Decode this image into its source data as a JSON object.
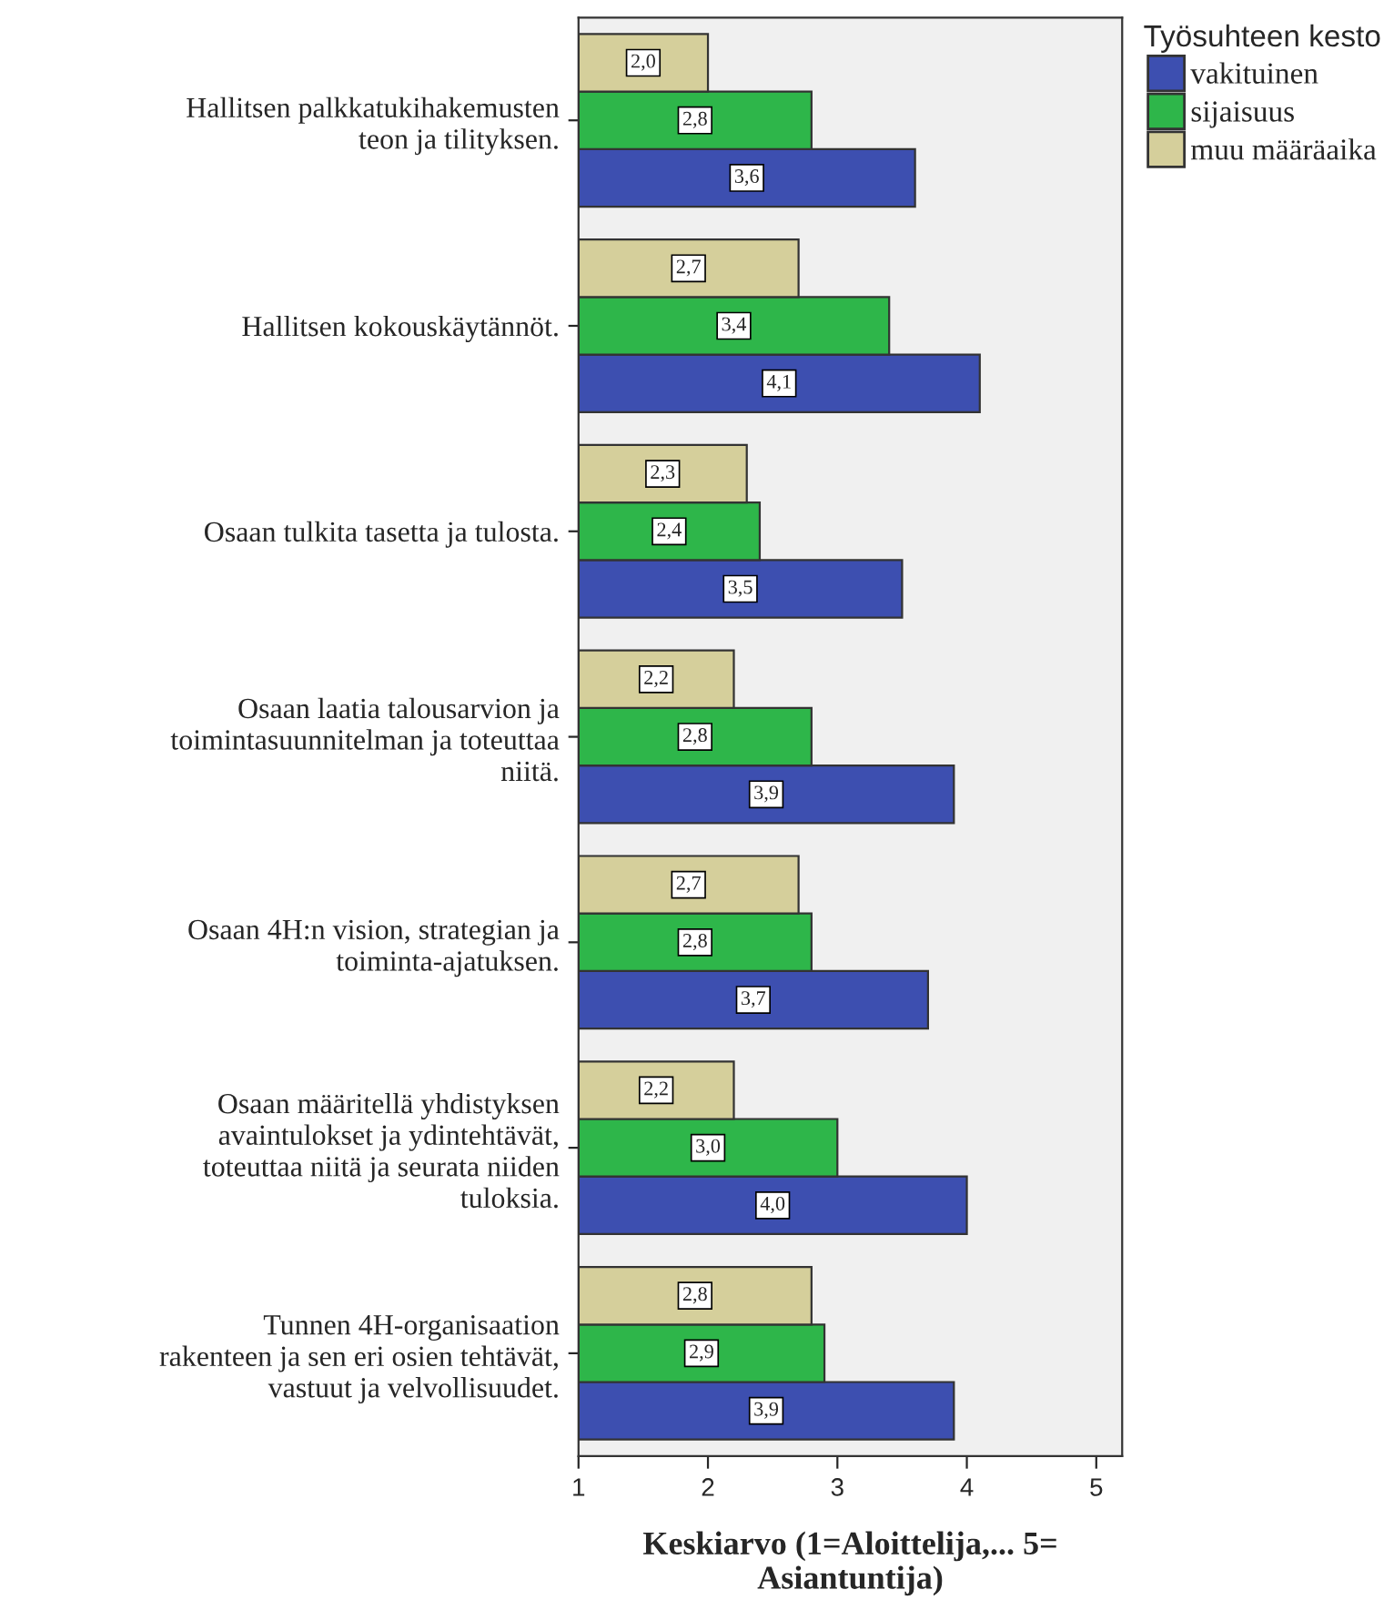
{
  "chart_data": {
    "type": "bar",
    "orientation": "horizontal",
    "categories": [
      "Hallitsen palkkatukihakemusten\nteon ja tilityksen.",
      "Hallitsen kokouskäytännöt.",
      "Osaan tulkita tasetta ja tulosta.",
      "Osaan laatia talousarvion ja\ntoimintasuunnitelman ja toteuttaa\nniitä.",
      "Osaan 4H:n vision, strategian ja\ntoiminta-ajatuksen.",
      "Osaan määritellä yhdistyksen\navaintulokset ja ydintehtävät,\ntoteuttaa niitä ja seurata niiden\ntuloksia.",
      "Tunnen 4H-organisaation\nrakenteen ja sen eri osien tehtävät,\nvastuut ja velvollisuudet."
    ],
    "series": [
      {
        "name": "vakituinen",
        "color": "#3d4fb0",
        "values": [
          3.6,
          4.1,
          3.5,
          3.9,
          3.7,
          4.0,
          3.9
        ],
        "value_labels": [
          "3,6",
          "4,1",
          "3,5",
          "3,9",
          "3,7",
          "4,0",
          "3,9"
        ]
      },
      {
        "name": "sijaisuus",
        "color": "#2eb64a",
        "values": [
          2.8,
          3.4,
          2.4,
          2.8,
          2.8,
          3.0,
          2.9
        ],
        "value_labels": [
          "2,8",
          "3,4",
          "2,4",
          "2,8",
          "2,8",
          "3,0",
          "2,9"
        ]
      },
      {
        "name": "muu määräaika",
        "color": "#d5cf9b",
        "values": [
          2.0,
          2.7,
          2.3,
          2.2,
          2.7,
          2.2,
          2.8
        ],
        "value_labels": [
          "2,0",
          "2,7",
          "2,3",
          "2,2",
          "2,7",
          "2,2",
          "2,8"
        ]
      }
    ],
    "xlabel": "Keskiarvo (1=Aloittelija,... 5=\nAsiantuntija)",
    "legend_title": "Työsuhteen kesto",
    "legend": "top right",
    "xlim": [
      1,
      5.2
    ],
    "xticks": [
      1,
      2,
      3,
      4,
      5
    ],
    "grid": false
  }
}
